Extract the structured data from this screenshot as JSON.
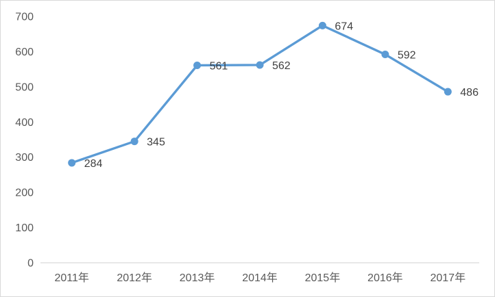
{
  "chart_data": {
    "type": "line",
    "title": "",
    "xlabel": "",
    "ylabel": "",
    "categories": [
      "2011年",
      "2012年",
      "2013年",
      "2014年",
      "2015年",
      "2016年",
      "2017年"
    ],
    "series": [
      {
        "name": "",
        "values": [
          284,
          345,
          561,
          562,
          674,
          592,
          486
        ]
      }
    ],
    "data_labels_shown": true,
    "ylim": [
      0,
      700
    ],
    "y_ticks": [
      0,
      100,
      200,
      300,
      400,
      500,
      600,
      700
    ],
    "grid": false,
    "legend": "none",
    "marker": "circle",
    "colors": {
      "line": "#5B9BD5",
      "marker": "#5B9BD5",
      "axis_text": "#595959",
      "data_label_text": "#404040",
      "axis_line": "#D9D9D9",
      "chart_border": "#D9D9D9",
      "background": "#FFFFFF"
    }
  }
}
